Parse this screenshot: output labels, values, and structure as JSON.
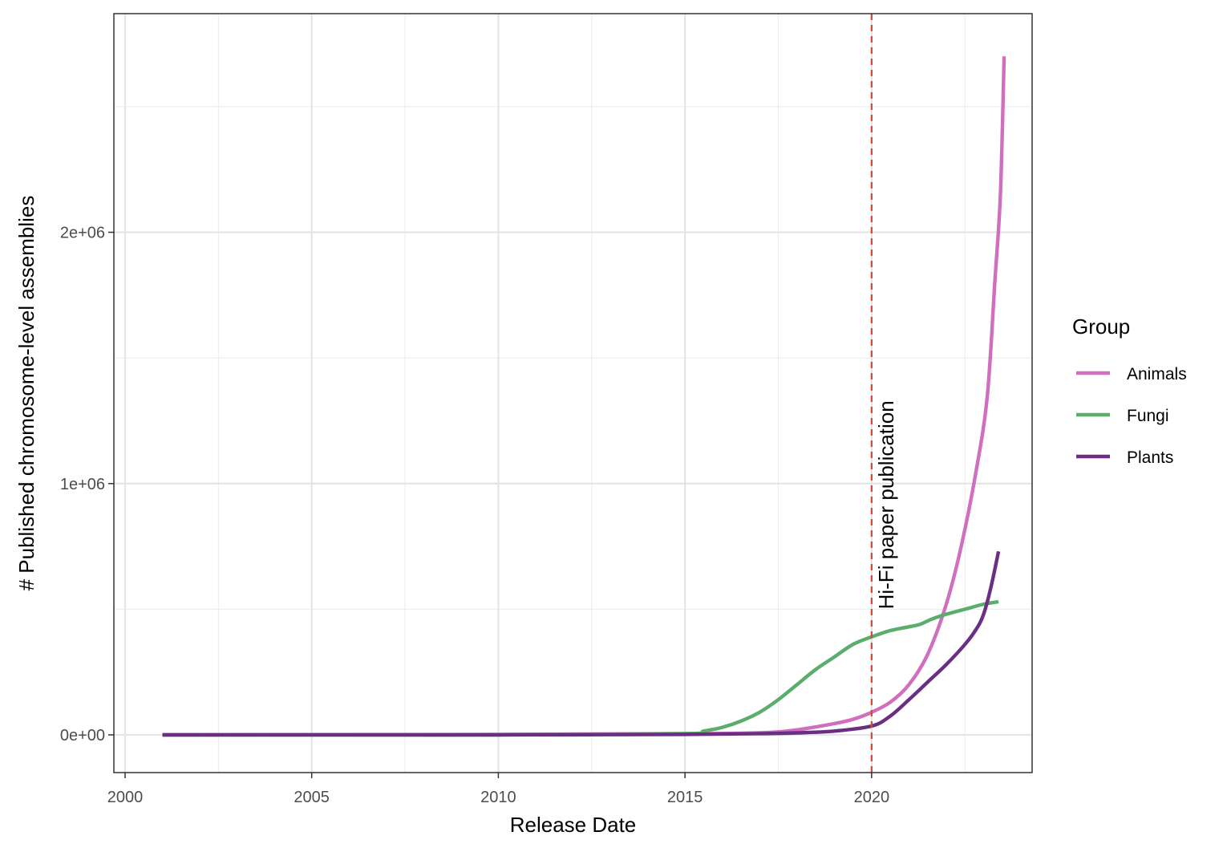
{
  "chart_data": {
    "type": "line",
    "title": "",
    "xlabel": "Release Date",
    "ylabel": "# Published chromosome-level assemblies",
    "xlim": [
      1999.7,
      2024.3
    ],
    "ylim": [
      -150000,
      2870000
    ],
    "x_ticks": [
      2000,
      2005,
      2010,
      2015,
      2020
    ],
    "x_tick_labels": [
      "2000",
      "2005",
      "2010",
      "2015",
      "2020"
    ],
    "y_ticks": [
      0,
      1000000,
      2000000
    ],
    "y_tick_labels": [
      "0e+00",
      "1e+06",
      "2e+06"
    ],
    "grid": true,
    "legend": {
      "title": "Group",
      "position": "right"
    },
    "annotation": {
      "x": 2020,
      "text": "Hi-Fi paper publication",
      "line_style": "dashed",
      "color": "#cc4c3b"
    },
    "series": [
      {
        "name": "Animals",
        "color": "#cf6fbd",
        "points": [
          [
            2001,
            0
          ],
          [
            2005,
            1000
          ],
          [
            2010,
            2000
          ],
          [
            2015,
            5000
          ],
          [
            2017,
            8000
          ],
          [
            2018,
            20000
          ],
          [
            2019,
            45000
          ],
          [
            2019.5,
            62000
          ],
          [
            2020,
            90000
          ],
          [
            2020.5,
            130000
          ],
          [
            2021,
            200000
          ],
          [
            2021.5,
            320000
          ],
          [
            2022,
            520000
          ],
          [
            2022.4,
            750000
          ],
          [
            2022.8,
            1050000
          ],
          [
            2023.1,
            1350000
          ],
          [
            2023.3,
            1800000
          ],
          [
            2023.45,
            2150000
          ],
          [
            2023.55,
            2700000
          ]
        ]
      },
      {
        "name": "Fungi",
        "color": "#5aad6b",
        "points": [
          [
            2001,
            0
          ],
          [
            2005,
            0
          ],
          [
            2010,
            0
          ],
          [
            2015,
            5000
          ],
          [
            2015.5,
            15000
          ],
          [
            2016,
            30000
          ],
          [
            2016.5,
            55000
          ],
          [
            2017,
            90000
          ],
          [
            2017.5,
            140000
          ],
          [
            2018,
            200000
          ],
          [
            2018.5,
            260000
          ],
          [
            2019,
            310000
          ],
          [
            2019.5,
            360000
          ],
          [
            2020,
            390000
          ],
          [
            2020.5,
            415000
          ],
          [
            2021,
            430000
          ],
          [
            2021.3,
            440000
          ],
          [
            2021.6,
            460000
          ],
          [
            2022,
            480000
          ],
          [
            2022.5,
            500000
          ],
          [
            2023,
            520000
          ],
          [
            2023.4,
            530000
          ]
        ]
      },
      {
        "name": "Plants",
        "color": "#6a2f82",
        "points": [
          [
            2001,
            0
          ],
          [
            2005,
            0
          ],
          [
            2010,
            0
          ],
          [
            2015,
            2000
          ],
          [
            2017,
            5000
          ],
          [
            2018,
            8000
          ],
          [
            2019,
            15000
          ],
          [
            2020,
            35000
          ],
          [
            2020.5,
            75000
          ],
          [
            2021,
            140000
          ],
          [
            2021.5,
            210000
          ],
          [
            2022,
            280000
          ],
          [
            2022.5,
            360000
          ],
          [
            2022.8,
            420000
          ],
          [
            2023,
            480000
          ],
          [
            2023.2,
            590000
          ],
          [
            2023.4,
            730000
          ]
        ]
      }
    ]
  }
}
